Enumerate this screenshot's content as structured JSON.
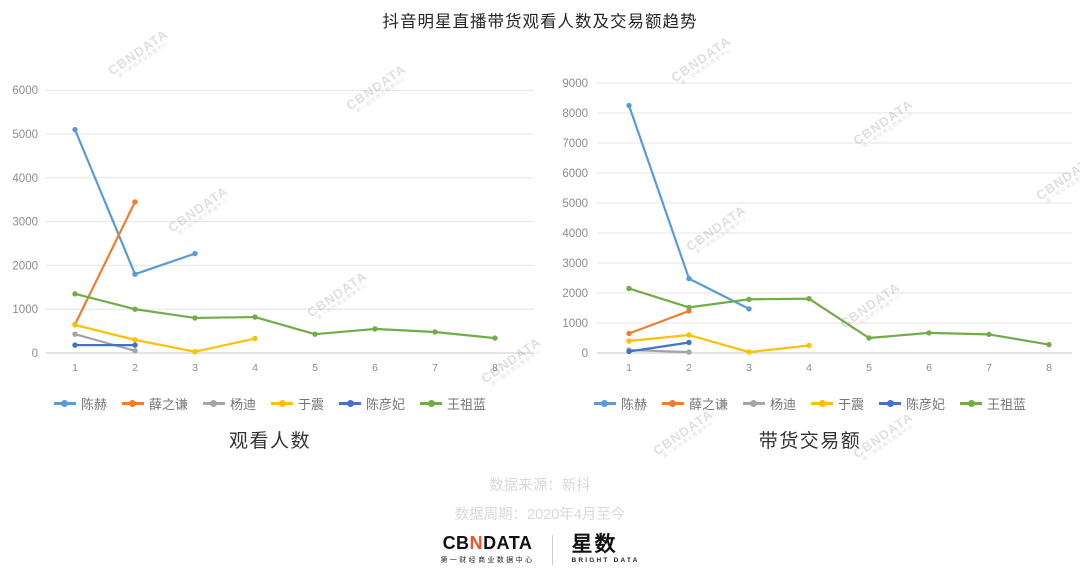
{
  "title": "抖音明星直播带货观看人数及交易额趋势",
  "watermark": {
    "text": "CBNDATA",
    "subtext": "第一财经商业数据中心"
  },
  "chart_data": [
    {
      "type": "line",
      "subtitle": "观看人数",
      "x": [
        "1",
        "2",
        "3",
        "4",
        "5",
        "6",
        "7",
        "8"
      ],
      "ylim": [
        0,
        6000
      ],
      "y_ticks": [
        0,
        1000,
        2000,
        3000,
        4000,
        5000,
        6000
      ],
      "grid": true,
      "legend_position": "bottom",
      "series": [
        {
          "name": "陈赫",
          "color": "#5B9BD5",
          "values": [
            5100,
            1800,
            2270,
            null,
            null,
            null,
            null,
            null
          ]
        },
        {
          "name": "薛之谦",
          "color": "#ED7D31",
          "values": [
            650,
            3450,
            null,
            null,
            null,
            null,
            null,
            null
          ]
        },
        {
          "name": "杨迪",
          "color": "#A5A5A5",
          "values": [
            430,
            50,
            null,
            null,
            null,
            null,
            null,
            null
          ]
        },
        {
          "name": "于震",
          "color": "#FFC000",
          "values": [
            640,
            300,
            30,
            330,
            null,
            null,
            null,
            null
          ]
        },
        {
          "name": "陈彦妃",
          "color": "#4472C4",
          "values": [
            180,
            180,
            null,
            null,
            null,
            null,
            null,
            null
          ]
        },
        {
          "name": "王祖蓝",
          "color": "#70AD47",
          "values": [
            1350,
            1000,
            800,
            820,
            430,
            550,
            480,
            340
          ]
        }
      ]
    },
    {
      "type": "line",
      "subtitle": "带货交易额",
      "x": [
        "1",
        "2",
        "3",
        "4",
        "5",
        "6",
        "7",
        "8"
      ],
      "ylim": [
        0,
        9000
      ],
      "y_ticks": [
        0,
        1000,
        2000,
        3000,
        4000,
        5000,
        6000,
        7000,
        8000,
        9000
      ],
      "grid": true,
      "legend_position": "bottom",
      "series": [
        {
          "name": "陈赫",
          "color": "#5B9BD5",
          "values": [
            8250,
            2480,
            1470,
            null,
            null,
            null,
            null,
            null
          ]
        },
        {
          "name": "薛之谦",
          "color": "#ED7D31",
          "values": [
            650,
            1400,
            null,
            null,
            null,
            null,
            null,
            null
          ]
        },
        {
          "name": "杨迪",
          "color": "#A5A5A5",
          "values": [
            100,
            30,
            null,
            null,
            null,
            null,
            null,
            null
          ]
        },
        {
          "name": "于震",
          "color": "#FFC000",
          "values": [
            400,
            600,
            30,
            250,
            null,
            null,
            null,
            null
          ]
        },
        {
          "name": "陈彦妃",
          "color": "#4472C4",
          "values": [
            50,
            350,
            null,
            null,
            null,
            null,
            null,
            null
          ]
        },
        {
          "name": "王祖蓝",
          "color": "#70AD47",
          "values": [
            2150,
            1520,
            1790,
            1810,
            500,
            670,
            620,
            280
          ]
        }
      ]
    }
  ],
  "footer": {
    "source": "数据来源：新抖",
    "period": "数据周期：2020年4月至今"
  },
  "logos": {
    "cbndata": {
      "part1": "CB",
      "part2": "N",
      "part3": "DATA",
      "accent_color": "#F0542D",
      "subtitle": "第一财经商业数据中心"
    },
    "xingshu": {
      "name": "星数",
      "subtitle": "BRIGHT DATA"
    }
  }
}
